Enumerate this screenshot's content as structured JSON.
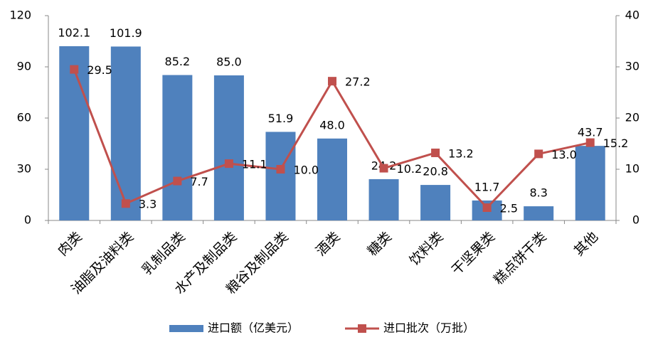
{
  "chart_data": {
    "type": "bar",
    "categories": [
      "肉类",
      "油脂及油料类",
      "乳制品类",
      "水产及制品类",
      "粮谷及制品类",
      "酒类",
      "糖类",
      "饮料类",
      "干坚果类",
      "糕点饼干类",
      "其他"
    ],
    "series": [
      {
        "name": "进口额（亿美元）",
        "type": "bar",
        "color": "#4f81bd",
        "values": [
          102.1,
          101.9,
          85.2,
          85.0,
          51.9,
          48.0,
          24.2,
          20.8,
          11.7,
          8.3,
          43.7
        ],
        "value_labels": [
          "102.1",
          "101.9",
          "85.2",
          "85.0",
          "51.9",
          "48.0",
          "24.2",
          "20.8",
          "11.7",
          "8.3",
          "43.7"
        ]
      },
      {
        "name": "进口批次（万批）",
        "type": "line",
        "axis": "y2",
        "color": "#c0504d",
        "values": [
          29.5,
          3.3,
          7.7,
          11.1,
          10.0,
          27.2,
          10.2,
          13.2,
          2.5,
          13.0,
          15.2
        ],
        "value_labels": [
          "29.5",
          "3.3",
          "7.7",
          "11.1",
          "10.0",
          "27.2",
          "10.2",
          "13.2",
          "2.5",
          "13.0",
          "15.2"
        ]
      }
    ],
    "ylim": [
      0,
      120
    ],
    "yticks": [
      0,
      30,
      60,
      90,
      120
    ],
    "y2lim": [
      0,
      40
    ],
    "y2ticks": [
      0,
      10,
      20,
      30,
      40
    ],
    "grid": false,
    "legend": "bottom"
  }
}
